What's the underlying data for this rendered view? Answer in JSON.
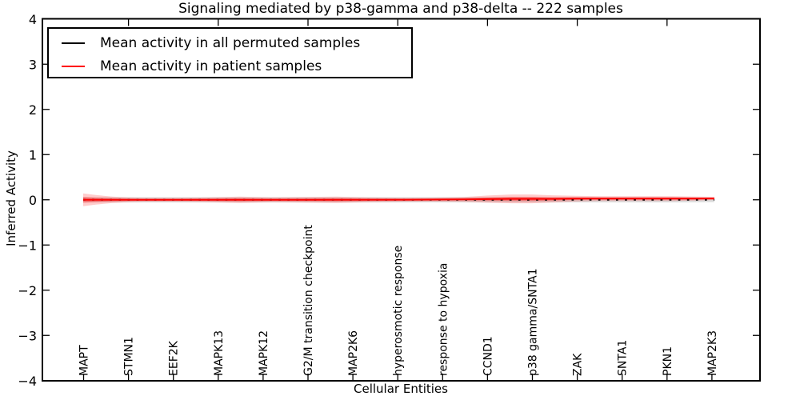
{
  "chart_data": {
    "type": "line",
    "title": "Signaling mediated by p38-gamma and p38-delta -- 222 samples",
    "xlabel": "Cellular Entities",
    "ylabel": "Inferred Activity",
    "ylim": [
      -4,
      4
    ],
    "xgrid": false,
    "ygrid": false,
    "legend_position": "upper left",
    "ytick_values": [
      4,
      3,
      2,
      1,
      0,
      -1,
      -2,
      -3,
      -4
    ],
    "ytick_labels": [
      "4",
      "3",
      "2",
      "1",
      "0",
      "−1",
      "−2",
      "−3",
      "−4"
    ],
    "categories": [
      "MAPT",
      "STMN1",
      "EEF2K",
      "MAPK13",
      "MAPK12",
      "G2/M transition checkpoint",
      "MAP2K6",
      "hyperosmotic response",
      "response to hypoxia",
      "CCND1",
      "p38 gamma/SNTA1",
      "ZAK",
      "SNTA1",
      "PKN1",
      "MAP2K3"
    ],
    "series": [
      {
        "name": "Mean activity in all permuted samples",
        "color": "#000000",
        "style": "dashed-markers",
        "values": [
          0,
          0,
          0,
          0,
          0,
          0,
          0,
          0,
          0,
          0,
          0,
          0,
          0,
          0,
          0
        ],
        "profile": [
          [
            0,
            0
          ],
          [
            1,
            0
          ]
        ]
      },
      {
        "name": "Mean activity in patient samples",
        "color": "#ff0000",
        "style": "solid",
        "values": [
          0,
          0,
          0,
          0,
          0,
          0,
          0,
          0,
          0.007,
          0.015,
          0.02,
          0.025,
          0.027,
          0.027,
          0.03
        ],
        "profile": [
          [
            0,
            0
          ],
          [
            0.25,
            0
          ],
          [
            0.5,
            0.002
          ],
          [
            0.553,
            0.005
          ],
          [
            0.603,
            0.01
          ],
          [
            0.641,
            0.015
          ],
          [
            0.679,
            0.02
          ],
          [
            0.711,
            0.02
          ],
          [
            0.743,
            0.02
          ],
          [
            0.781,
            0.025
          ],
          [
            0.819,
            0.027
          ],
          [
            0.857,
            0.027
          ],
          [
            0.895,
            0.027
          ],
          [
            0.933,
            0.027
          ],
          [
            0.971,
            0.028
          ],
          [
            1,
            0.03
          ]
        ]
      }
    ],
    "bands": [
      {
        "name": "permuted_samples_range",
        "color": "#bfbfbf",
        "opacity": 0.55,
        "profile": [
          [
            0,
            0,
            0.05
          ],
          [
            0.05,
            0,
            0.058
          ],
          [
            0.5,
            0,
            0.058
          ],
          [
            0.95,
            0,
            0.058
          ],
          [
            1,
            0,
            0.05
          ]
        ]
      },
      {
        "name": "patient_ci_outer",
        "color": "#ff0000",
        "opacity": 0.2,
        "profile": [
          [
            0,
            0,
            0.142
          ],
          [
            0.02,
            0,
            0.106
          ],
          [
            0.046,
            0,
            0.071
          ],
          [
            0.071,
            0,
            0.053
          ],
          [
            0.096,
            0,
            0.044
          ],
          [
            0.147,
            0,
            0.044
          ],
          [
            0.198,
            0,
            0.053
          ],
          [
            0.248,
            0,
            0.071
          ],
          [
            0.299,
            0,
            0.053
          ],
          [
            0.35,
            0,
            0.062
          ],
          [
            0.401,
            0,
            0.071
          ],
          [
            0.451,
            0,
            0.053
          ],
          [
            0.502,
            0,
            0.044
          ],
          [
            0.553,
            0.005,
            0.044
          ],
          [
            0.603,
            0.01,
            0.053
          ],
          [
            0.641,
            0.015,
            0.08
          ],
          [
            0.679,
            0.02,
            0.097
          ],
          [
            0.711,
            0.02,
            0.097
          ],
          [
            0.743,
            0.02,
            0.08
          ],
          [
            0.781,
            0.025,
            0.062
          ],
          [
            0.819,
            0.027,
            0.053
          ],
          [
            0.857,
            0.027,
            0.053
          ],
          [
            0.895,
            0.027,
            0.053
          ],
          [
            0.933,
            0.027,
            0.053
          ],
          [
            0.971,
            0.027,
            0.044
          ],
          [
            1,
            0.03,
            0.035
          ]
        ]
      },
      {
        "name": "patient_ci_inner",
        "color": "#ff0000",
        "opacity": 0.32,
        "profile": [
          [
            0,
            0,
            0.064
          ],
          [
            0.02,
            0,
            0.048
          ],
          [
            0.046,
            0,
            0.032
          ],
          [
            0.071,
            0,
            0.024
          ],
          [
            0.096,
            0,
            0.02
          ],
          [
            0.147,
            0,
            0.02
          ],
          [
            0.198,
            0,
            0.024
          ],
          [
            0.248,
            0,
            0.032
          ],
          [
            0.299,
            0,
            0.024
          ],
          [
            0.35,
            0,
            0.028
          ],
          [
            0.401,
            0,
            0.032
          ],
          [
            0.451,
            0,
            0.024
          ],
          [
            0.502,
            0,
            0.02
          ],
          [
            0.553,
            0.005,
            0.02
          ],
          [
            0.603,
            0.01,
            0.024
          ],
          [
            0.641,
            0.015,
            0.036
          ],
          [
            0.679,
            0.02,
            0.044
          ],
          [
            0.711,
            0.02,
            0.044
          ],
          [
            0.743,
            0.02,
            0.036
          ],
          [
            0.781,
            0.025,
            0.028
          ],
          [
            0.819,
            0.027,
            0.024
          ],
          [
            0.857,
            0.027,
            0.024
          ],
          [
            0.895,
            0.027,
            0.024
          ],
          [
            0.933,
            0.027,
            0.024
          ],
          [
            0.971,
            0.027,
            0.02
          ],
          [
            1,
            0.03,
            0.016
          ]
        ]
      }
    ]
  }
}
